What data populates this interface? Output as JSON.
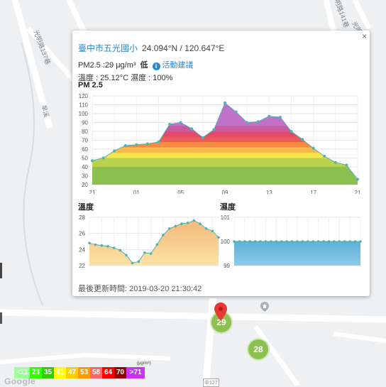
{
  "map": {
    "road_labels": [
      "光明路137巷",
      "光明路141巷",
      "旱溪",
      "光明路",
      "中127"
    ],
    "markers": [
      {
        "label": "29",
        "color": "#8cc152"
      },
      {
        "label": "28",
        "color": "#8cc152"
      }
    ],
    "attribution": "Google"
  },
  "popup": {
    "close_label": "×",
    "location_name": "臺中市五光國小",
    "coordinates": "24.094°N / 120.647°E",
    "pm_reading": "PM2.5 :29 μg/m³",
    "pm_level": "低",
    "info_icon": "info-icon",
    "advice_link": "活動建議",
    "weather": "溫度 : 25.12°C  濕度 : 100%",
    "updated": "最後更新時間: 2019-03-20 21:30:42"
  },
  "chart_data": [
    {
      "type": "area",
      "title": "PM 2.5",
      "x_ticks": [
        "21",
        "01",
        "05",
        "09",
        "13",
        "17",
        "21"
      ],
      "y_ticks": [
        20,
        30,
        40,
        50,
        60,
        70,
        80,
        90,
        100,
        110,
        120
      ],
      "ylim": [
        20,
        120
      ],
      "hours": [
        21,
        22,
        23,
        0,
        1,
        2,
        3,
        4,
        5,
        6,
        7,
        8,
        9,
        10,
        11,
        12,
        13,
        14,
        15,
        16,
        17,
        18,
        19,
        20,
        21
      ],
      "values": [
        47,
        50,
        58,
        64,
        65,
        66,
        68,
        88,
        90,
        83,
        73,
        82,
        112,
        102,
        90,
        91,
        97,
        96,
        80,
        71,
        61,
        52,
        45,
        42,
        26
      ],
      "grid": true
    },
    {
      "type": "area",
      "title": "溫度",
      "y_ticks": [
        22,
        24,
        26,
        28
      ],
      "ylim": [
        22,
        28
      ],
      "values": [
        24.8,
        24.6,
        24.5,
        24.4,
        24.2,
        23.9,
        23.3,
        22.3,
        22.5,
        23.6,
        23.5,
        24.6,
        25.8,
        26.6,
        26.9,
        27.2,
        27.3,
        27.6,
        27.2,
        26.6,
        26.3,
        25.5
      ],
      "grid": true
    },
    {
      "type": "area",
      "title": "濕度",
      "y_ticks": [
        99,
        100,
        101
      ],
      "ylim": [
        99,
        101
      ],
      "values": [
        100,
        100,
        100,
        100,
        100,
        100,
        100,
        100,
        100,
        100,
        100,
        100,
        100,
        100,
        100,
        100,
        100,
        100,
        100,
        100,
        100,
        100,
        100,
        100,
        100
      ],
      "grid": true
    }
  ],
  "legend": {
    "unit": "(μg/m³)",
    "items": [
      {
        "label": "<11",
        "color": "#9cff9c"
      },
      {
        "label": "23",
        "color": "#31ff00"
      },
      {
        "label": "35",
        "color": "#31cf00"
      },
      {
        "label": "41",
        "color": "#ffff00"
      },
      {
        "label": "47",
        "color": "#ffcf00"
      },
      {
        "label": "53",
        "color": "#ff9a00"
      },
      {
        "label": "58",
        "color": "#ff6464"
      },
      {
        "label": "64",
        "color": "#ff0000"
      },
      {
        "label": "70",
        "color": "#990000"
      },
      {
        "label": ">71",
        "color": "#ce30ff"
      }
    ]
  }
}
